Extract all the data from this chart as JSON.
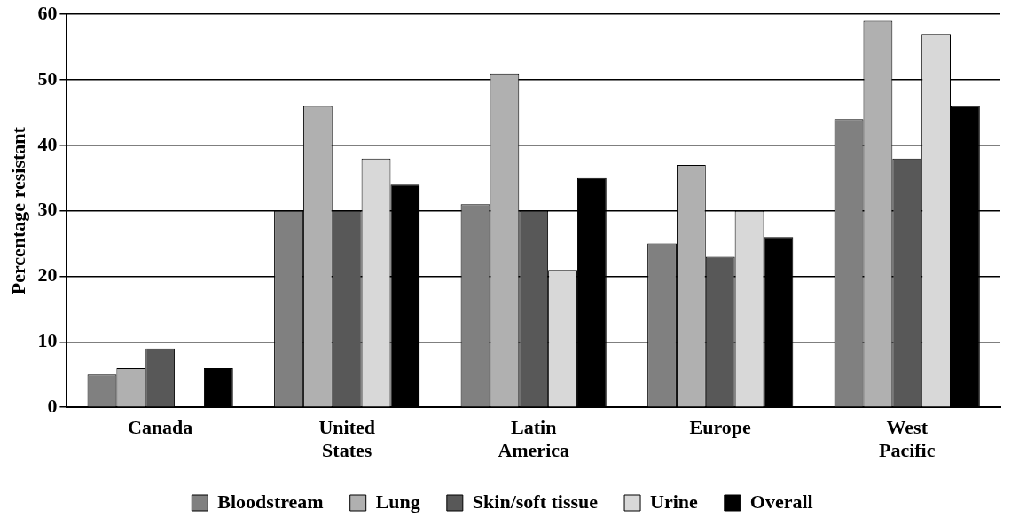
{
  "chart_data": {
    "type": "bar",
    "ylabel": "Percentage resistant",
    "categories": [
      "Canada",
      "United States",
      "Latin America",
      "Europe",
      "West Pacific"
    ],
    "series": [
      {
        "name": "Bloodstream",
        "color": "#808080",
        "values": [
          5,
          30,
          31,
          25,
          44
        ]
      },
      {
        "name": "Lung",
        "color": "#b0b0b0",
        "values": [
          6,
          46,
          51,
          37,
          59
        ]
      },
      {
        "name": "Skin/soft tissue",
        "color": "#585858",
        "values": [
          9,
          30,
          30,
          23,
          38
        ]
      },
      {
        "name": "Urine",
        "color": "#d8d8d8",
        "values": [
          null,
          38,
          21,
          30,
          57
        ]
      },
      {
        "name": "Overall",
        "color": "#000000",
        "values": [
          6,
          34,
          35,
          26,
          46
        ]
      }
    ],
    "ylim": [
      0,
      60
    ],
    "yticks": [
      0,
      10,
      20,
      30,
      40,
      50,
      60
    ],
    "grid": "y",
    "legend": "bottom"
  }
}
